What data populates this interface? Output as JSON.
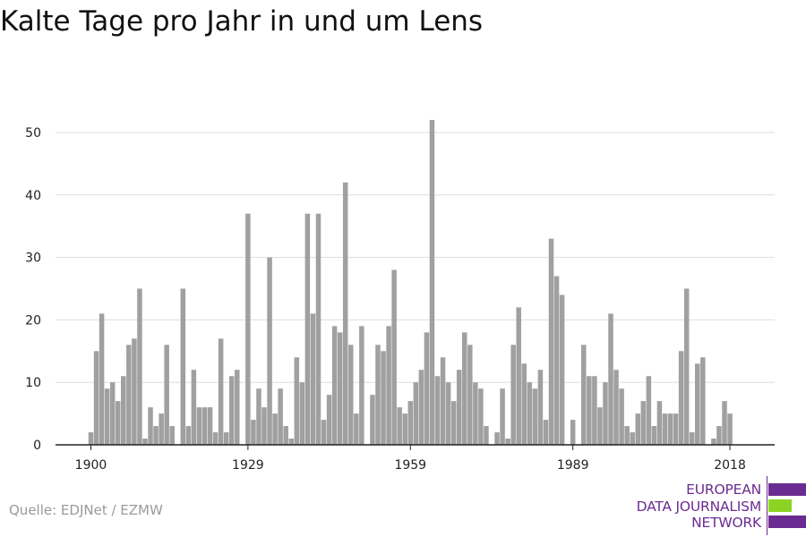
{
  "title": "Kalte Tage pro Jahr in und um Lens",
  "source": "Quelle: EDJNet / EZMW",
  "logo": {
    "lines": [
      "EUROPEAN",
      "DATA JOURNALISM",
      "NETWORK"
    ],
    "colors": {
      "purple": "#6b2c91",
      "green": "#8cd424"
    }
  },
  "colors": {
    "bar": "#a0a0a0",
    "grid": "#dddddd",
    "axis": "#222222"
  },
  "chart_data": {
    "type": "bar",
    "title": "Kalte Tage pro Jahr in und um Lens",
    "xlabel": "",
    "ylabel": "",
    "grid": true,
    "ylim": [
      0,
      52
    ],
    "xlim": [
      1900,
      2018
    ],
    "x_ticks": [
      1900,
      1929,
      1959,
      1989,
      2018
    ],
    "y_ticks": [
      0,
      10,
      20,
      30,
      40,
      50
    ],
    "x": [
      1900,
      1901,
      1902,
      1903,
      1904,
      1905,
      1906,
      1907,
      1908,
      1909,
      1910,
      1911,
      1912,
      1913,
      1914,
      1915,
      1916,
      1917,
      1918,
      1919,
      1920,
      1921,
      1922,
      1923,
      1924,
      1925,
      1926,
      1927,
      1928,
      1929,
      1930,
      1931,
      1932,
      1933,
      1934,
      1935,
      1936,
      1937,
      1938,
      1939,
      1940,
      1941,
      1942,
      1943,
      1944,
      1945,
      1946,
      1947,
      1948,
      1949,
      1950,
      1951,
      1952,
      1953,
      1954,
      1955,
      1956,
      1957,
      1958,
      1959,
      1960,
      1961,
      1962,
      1963,
      1964,
      1965,
      1966,
      1967,
      1968,
      1969,
      1970,
      1971,
      1972,
      1973,
      1974,
      1975,
      1976,
      1977,
      1978,
      1979,
      1980,
      1981,
      1982,
      1983,
      1984,
      1985,
      1986,
      1987,
      1988,
      1989,
      1990,
      1991,
      1992,
      1993,
      1994,
      1995,
      1996,
      1997,
      1998,
      1999,
      2000,
      2001,
      2002,
      2003,
      2004,
      2005,
      2006,
      2007,
      2008,
      2009,
      2010,
      2011,
      2012,
      2013,
      2014,
      2015,
      2016,
      2017,
      2018
    ],
    "values": [
      2,
      15,
      21,
      9,
      10,
      7,
      11,
      16,
      17,
      25,
      1,
      6,
      3,
      5,
      16,
      3,
      0,
      25,
      3,
      12,
      6,
      6,
      6,
      2,
      17,
      2,
      11,
      12,
      0,
      37,
      4,
      9,
      6,
      30,
      5,
      9,
      3,
      1,
      14,
      10,
      37,
      21,
      37,
      4,
      8,
      19,
      18,
      42,
      16,
      5,
      19,
      0,
      8,
      16,
      15,
      19,
      28,
      6,
      5,
      7,
      10,
      12,
      18,
      52,
      11,
      14,
      10,
      7,
      12,
      18,
      16,
      10,
      9,
      3,
      0,
      2,
      9,
      1,
      16,
      22,
      13,
      10,
      9,
      12,
      4,
      33,
      27,
      24,
      0,
      4,
      0,
      16,
      11,
      11,
      6,
      10,
      21,
      12,
      9,
      3,
      2,
      5,
      7,
      11,
      3,
      7,
      5,
      5,
      5,
      15,
      25,
      2,
      13,
      14,
      0,
      1,
      3,
      7,
      5
    ]
  }
}
